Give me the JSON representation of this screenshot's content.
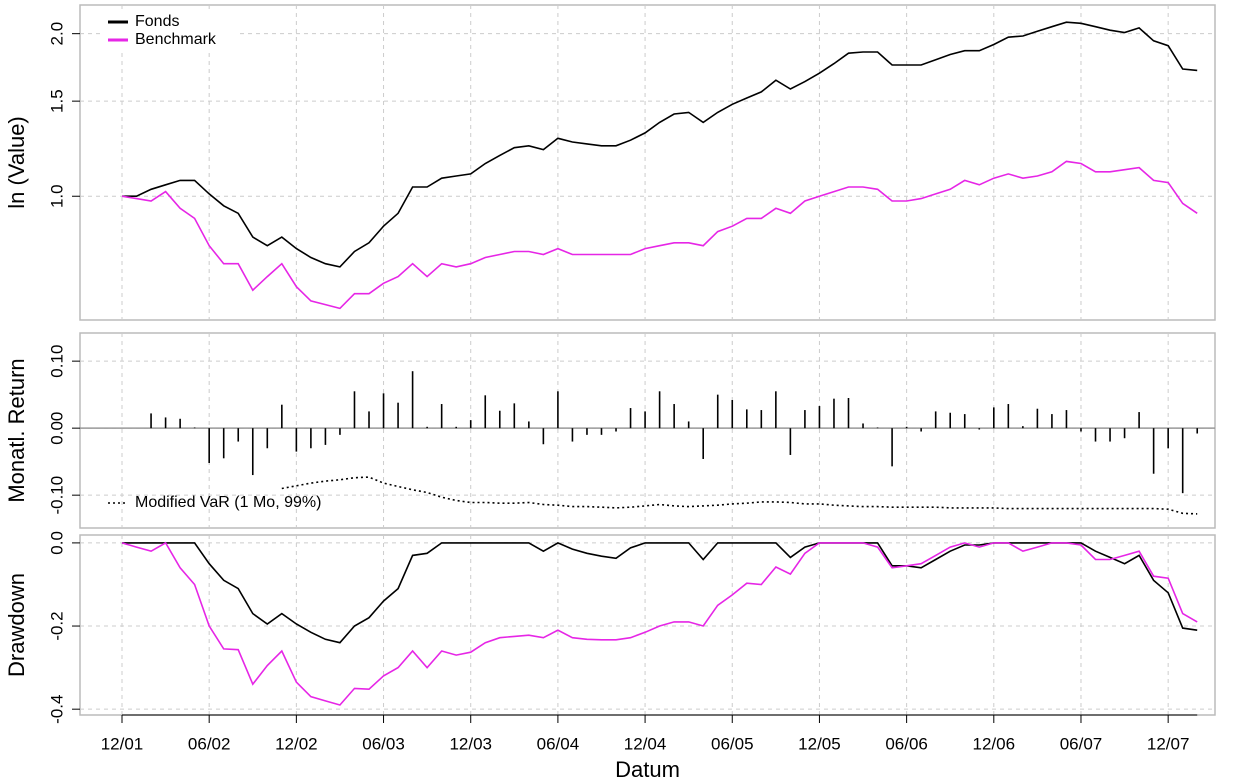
{
  "chart_data": [
    {
      "type": "line",
      "ylabel": "ln (Value)",
      "log": true,
      "ylim": [
        0.59,
        2.26
      ],
      "yticks": [
        {
          "value": 1,
          "label": "1.0"
        },
        1.5,
        {
          "value": 2,
          "label": "2.0"
        }
      ],
      "grid": true,
      "legend": "top-left",
      "series": [
        {
          "name": "Fonds",
          "color": "#000000",
          "values": [
            1.0,
            1.0,
            1.03,
            1.05,
            1.07,
            1.07,
            1.01,
            0.96,
            0.93,
            0.84,
            0.81,
            0.84,
            0.8,
            0.77,
            0.75,
            0.74,
            0.79,
            0.82,
            0.88,
            0.93,
            1.04,
            1.04,
            1.08,
            1.09,
            1.1,
            1.15,
            1.19,
            1.23,
            1.24,
            1.22,
            1.28,
            1.26,
            1.25,
            1.24,
            1.24,
            1.27,
            1.31,
            1.37,
            1.42,
            1.43,
            1.37,
            1.43,
            1.48,
            1.52,
            1.56,
            1.64,
            1.58,
            1.63,
            1.69,
            1.76,
            1.84,
            1.85,
            1.85,
            1.75,
            1.75,
            1.75,
            1.79,
            1.83,
            1.86,
            1.86,
            1.91,
            1.97,
            1.98,
            2.02,
            2.06,
            2.1,
            2.09,
            2.06,
            2.03,
            2.01,
            2.05,
            1.94,
            1.9,
            1.72,
            1.71
          ]
        },
        {
          "name": "Benchmark",
          "color": "#e626e6",
          "values": [
            1.0,
            0.99,
            0.98,
            1.02,
            0.95,
            0.91,
            0.81,
            0.75,
            0.75,
            0.67,
            0.71,
            0.75,
            0.68,
            0.64,
            0.63,
            0.62,
            0.66,
            0.66,
            0.69,
            0.71,
            0.75,
            0.71,
            0.75,
            0.74,
            0.75,
            0.77,
            0.78,
            0.79,
            0.79,
            0.78,
            0.8,
            0.78,
            0.78,
            0.78,
            0.78,
            0.78,
            0.8,
            0.81,
            0.82,
            0.82,
            0.81,
            0.86,
            0.88,
            0.91,
            0.91,
            0.95,
            0.93,
            0.98,
            1.0,
            1.02,
            1.04,
            1.04,
            1.03,
            0.98,
            0.98,
            0.99,
            1.01,
            1.03,
            1.07,
            1.05,
            1.08,
            1.1,
            1.08,
            1.09,
            1.11,
            1.16,
            1.15,
            1.11,
            1.11,
            1.12,
            1.13,
            1.07,
            1.06,
            0.97,
            0.93
          ]
        }
      ]
    },
    {
      "type": "bar",
      "ylabel": "Monatl. Return",
      "ylim": [
        -0.149,
        0.142
      ],
      "yticks": [
        {
          "value": -0.1,
          "label": "-0.10"
        },
        {
          "value": 0,
          "label": "0.00"
        },
        {
          "value": 0.1,
          "label": "0.10"
        }
      ],
      "grid": true,
      "color": "#000000",
      "values": [
        null,
        0.0,
        0.022,
        0.016,
        0.014,
        0.001,
        -0.052,
        -0.045,
        -0.02,
        -0.07,
        -0.03,
        0.035,
        -0.035,
        -0.03,
        -0.025,
        -0.01,
        0.055,
        0.025,
        0.052,
        0.038,
        0.085,
        0.002,
        0.036,
        0.002,
        0.012,
        0.049,
        0.026,
        0.037,
        0.01,
        -0.024,
        0.055,
        -0.02,
        -0.01,
        -0.01,
        -0.005,
        0.03,
        0.025,
        0.055,
        0.036,
        0.01,
        -0.046,
        0.05,
        0.042,
        0.028,
        0.027,
        0.055,
        -0.04,
        0.027,
        0.033,
        0.044,
        0.045,
        0.007,
        0.001,
        -0.057,
        0.002,
        -0.005,
        0.025,
        0.023,
        0.021,
        -0.002,
        0.031,
        0.036,
        0.003,
        0.029,
        0.021,
        0.027,
        -0.005,
        -0.02,
        -0.02,
        -0.015,
        0.024,
        -0.068,
        -0.03,
        -0.097,
        -0.008
      ],
      "series": [
        {
          "name": "Modified VaR (1 Mo, 99%)",
          "type": "line",
          "style": "dotted",
          "color": "#000000",
          "values": [
            null,
            null,
            null,
            null,
            null,
            null,
            null,
            null,
            null,
            null,
            null,
            -0.09,
            -0.086,
            -0.082,
            -0.079,
            -0.077,
            -0.074,
            -0.073,
            -0.082,
            -0.087,
            -0.092,
            -0.096,
            -0.103,
            -0.108,
            -0.111,
            -0.111,
            -0.112,
            -0.112,
            -0.111,
            -0.114,
            -0.115,
            -0.117,
            -0.117,
            -0.118,
            -0.119,
            -0.118,
            -0.116,
            -0.114,
            -0.116,
            -0.117,
            -0.116,
            -0.115,
            -0.113,
            -0.112,
            -0.11,
            -0.11,
            -0.111,
            -0.113,
            -0.113,
            -0.115,
            -0.116,
            -0.117,
            -0.117,
            -0.118,
            -0.118,
            -0.118,
            -0.118,
            -0.119,
            -0.119,
            -0.119,
            -0.119,
            -0.12,
            -0.12,
            -0.12,
            -0.12,
            -0.12,
            -0.12,
            -0.12,
            -0.12,
            -0.12,
            -0.12,
            -0.12,
            -0.121,
            -0.127,
            -0.128
          ]
        }
      ]
    },
    {
      "type": "line",
      "ylabel": "Drawdown",
      "xlabel": "Datum",
      "ylim": [
        -0.414,
        0.019
      ],
      "yticks": [
        -0.4,
        -0.2,
        {
          "value": 0,
          "label": "0.0"
        }
      ],
      "grid": true,
      "categories": [
        "12/01",
        null,
        null,
        null,
        null,
        null,
        "06/02",
        null,
        null,
        null,
        null,
        null,
        "12/02",
        null,
        null,
        null,
        null,
        null,
        "06/03",
        null,
        null,
        null,
        null,
        null,
        "12/03",
        null,
        null,
        null,
        null,
        null,
        "06/04",
        null,
        null,
        null,
        null,
        null,
        "12/04",
        null,
        null,
        null,
        null,
        null,
        "06/05",
        null,
        null,
        null,
        null,
        null,
        "12/05",
        null,
        null,
        null,
        null,
        null,
        "06/06",
        null,
        null,
        null,
        null,
        null,
        "12/06",
        null,
        null,
        null,
        null,
        null,
        "06/07",
        null,
        null,
        null,
        null,
        null,
        "12/07",
        null,
        null
      ],
      "series": [
        {
          "name": "Fonds",
          "color": "#000000",
          "values": [
            0,
            0,
            0,
            0,
            0,
            0,
            -0.05,
            -0.09,
            -0.11,
            -0.17,
            -0.195,
            -0.17,
            -0.195,
            -0.215,
            -0.232,
            -0.24,
            -0.2,
            -0.18,
            -0.14,
            -0.11,
            -0.03,
            -0.025,
            0,
            0,
            0,
            0,
            0,
            0,
            0,
            -0.02,
            0,
            -0.015,
            -0.025,
            -0.032,
            -0.037,
            -0.012,
            0,
            0,
            0,
            0,
            -0.04,
            0,
            0,
            0,
            0,
            0,
            -0.035,
            -0.01,
            0,
            0,
            0,
            0,
            0,
            -0.055,
            -0.055,
            -0.06,
            -0.04,
            -0.02,
            -0.005,
            -0.005,
            0,
            0,
            0,
            0,
            0,
            0,
            0,
            -0.02,
            -0.035,
            -0.05,
            -0.03,
            -0.09,
            -0.12,
            -0.205,
            -0.21
          ]
        },
        {
          "name": "Benchmark",
          "color": "#e626e6",
          "values": [
            0,
            -0.01,
            -0.02,
            0,
            -0.06,
            -0.1,
            -0.2,
            -0.255,
            -0.257,
            -0.34,
            -0.295,
            -0.26,
            -0.335,
            -0.37,
            -0.38,
            -0.39,
            -0.35,
            -0.352,
            -0.32,
            -0.3,
            -0.26,
            -0.3,
            -0.26,
            -0.27,
            -0.263,
            -0.24,
            -0.228,
            -0.225,
            -0.222,
            -0.228,
            -0.21,
            -0.228,
            -0.232,
            -0.233,
            -0.233,
            -0.228,
            -0.215,
            -0.2,
            -0.19,
            -0.19,
            -0.2,
            -0.15,
            -0.125,
            -0.097,
            -0.1,
            -0.058,
            -0.075,
            -0.025,
            0,
            0,
            0,
            0,
            -0.01,
            -0.06,
            -0.055,
            -0.05,
            -0.03,
            -0.01,
            0,
            -0.01,
            0,
            0,
            -0.02,
            -0.01,
            0,
            0,
            -0.005,
            -0.04,
            -0.04,
            -0.03,
            -0.02,
            -0.08,
            -0.085,
            -0.17,
            -0.19
          ]
        }
      ]
    }
  ]
}
